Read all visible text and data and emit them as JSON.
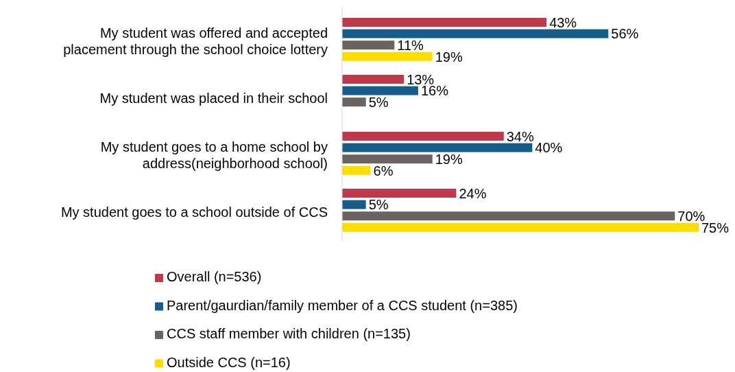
{
  "chart_data": {
    "type": "bar",
    "orientation": "horizontal",
    "legend": "bottom",
    "categories": [
      "My student was offered and accepted placement through the school choice lottery",
      "My student was placed in their school",
      "My student goes to a home school by address(neighborhood school)",
      "My student goes to a school outside of CCS"
    ],
    "series": [
      {
        "name": "Overall (n=536)",
        "color": "#be3a4a",
        "values": [
          43,
          13,
          34,
          24
        ],
        "value_labels": [
          "43%",
          "13%",
          "34%",
          "24%"
        ]
      },
      {
        "name": "Parent/gaurdian/family member of a CCS student (n=385)",
        "color": "#175d8a",
        "values": [
          56,
          16,
          40,
          5
        ],
        "value_labels": [
          "56%",
          "16%",
          "40%",
          "5%"
        ]
      },
      {
        "name": "CCS staff member with children (n=135)",
        "color": "#6b6262",
        "values": [
          11,
          5,
          19,
          70
        ],
        "value_labels": [
          "11%",
          "5%",
          "19%",
          "70%"
        ]
      },
      {
        "name": "Outside CCS (n=16)",
        "color": "#fedd00",
        "values": [
          19,
          null,
          6,
          75
        ],
        "value_labels": [
          "19%",
          null,
          "6%",
          "75%"
        ]
      }
    ]
  }
}
